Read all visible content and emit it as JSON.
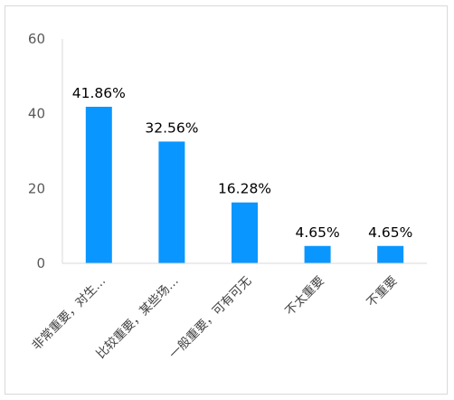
{
  "chart_data": {
    "type": "bar",
    "categories": [
      "非常重要，对生…",
      "比较重要，某些场…",
      "一般重要，可有可无",
      "不太重要",
      "不重要"
    ],
    "values": [
      41.86,
      32.56,
      16.28,
      4.65,
      4.65
    ],
    "data_labels": [
      "41.86%",
      "32.56%",
      "16.28%",
      "4.65%",
      "4.65%"
    ],
    "ylim": [
      0,
      60
    ],
    "yticks": [
      0,
      20,
      40,
      60
    ],
    "ytick_labels": [
      "0",
      "20",
      "40",
      "60"
    ],
    "grid": false,
    "legend": "none",
    "bar_color": "#0a96ff",
    "axis_color": "#d9d9d9"
  }
}
